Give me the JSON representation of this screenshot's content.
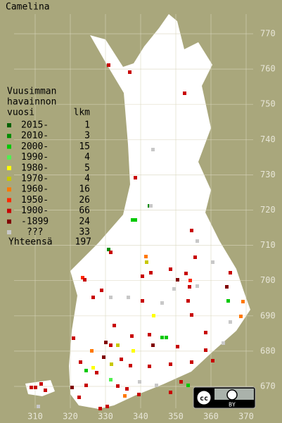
{
  "title": "Camelina",
  "legend": {
    "header": [
      "Vuusimman",
      "havainnon",
      "vuosi"
    ],
    "count_header": "lkm",
    "rows": [
      {
        "label": "2015-",
        "count": 1,
        "color": "#006000"
      },
      {
        "label": "2010-",
        "count": 3,
        "color": "#008c00"
      },
      {
        "label": "2000-",
        "count": 15,
        "color": "#00c800"
      },
      {
        "label": "1990-",
        "count": 4,
        "color": "#50f050"
      },
      {
        "label": "1980-",
        "count": 5,
        "color": "#ffff00"
      },
      {
        "label": "1970-",
        "count": 4,
        "color": "#c8c800"
      },
      {
        "label": "1960-",
        "count": 16,
        "color": "#ff7800"
      },
      {
        "label": "1950-",
        "count": 26,
        "color": "#ff2800"
      },
      {
        "label": "1900-",
        "count": 66,
        "color": "#c80000"
      },
      {
        "label": "-1899",
        "count": 24,
        "color": "#800000"
      },
      {
        "label": "???",
        "count": 33,
        "color": "#c8c8c8"
      }
    ],
    "total_label": "Yhteensä",
    "total": 197
  },
  "y_axis": [
    770,
    760,
    750,
    740,
    730,
    720,
    710,
    700,
    690,
    680,
    670
  ],
  "x_axis": [
    310,
    320,
    330,
    340,
    350,
    360,
    370
  ],
  "license": "BY"
}
